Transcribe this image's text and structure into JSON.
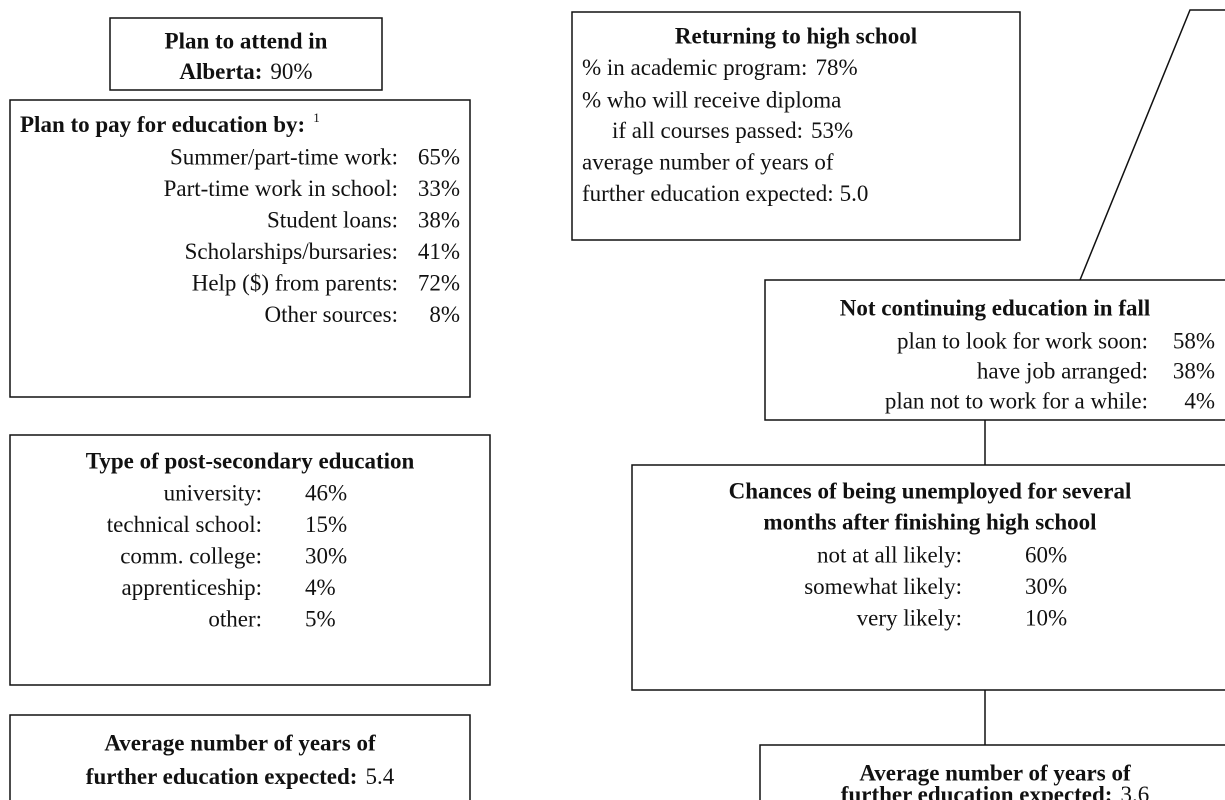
{
  "attend": {
    "title": "Plan to attend in",
    "label": "Alberta:",
    "value": "90%"
  },
  "pay": {
    "title": "Plan to pay for education by:",
    "footnote": "1",
    "items": [
      {
        "label": "Summer/part-time work:",
        "value": "65%"
      },
      {
        "label": "Part-time work in school:",
        "value": "33%"
      },
      {
        "label": "Student loans:",
        "value": "38%"
      },
      {
        "label": "Scholarships/bursaries:",
        "value": "41%"
      },
      {
        "label": "Help ($) from parents:",
        "value": "72%"
      },
      {
        "label": "Other sources:",
        "value": "8%"
      }
    ]
  },
  "type": {
    "title": "Type of post-secondary education",
    "items": [
      {
        "label": "university:",
        "value": "46%"
      },
      {
        "label": "technical school:",
        "value": "15%"
      },
      {
        "label": "comm. college:",
        "value": "30%"
      },
      {
        "label": "apprenticeship:",
        "value": "4%"
      },
      {
        "label": "other:",
        "value": "5%"
      }
    ]
  },
  "years_attending": {
    "title": "Average number of years of",
    "label": "further education expected:",
    "value": "5.4"
  },
  "returning": {
    "title": "Returning to high school",
    "items": [
      {
        "label": "% in academic program:",
        "value": "78%"
      },
      {
        "label": "% who will receive diploma",
        "label2": "if all courses passed:",
        "value": "53%"
      },
      {
        "label": "average number of years of",
        "label2": "further education expected:",
        "value": "5.0"
      }
    ]
  },
  "not_continuing": {
    "title": "Not continuing education in fall",
    "items": [
      {
        "label": "plan to look for work soon:",
        "value": "58%"
      },
      {
        "label": "have job arranged:",
        "value": "38%"
      },
      {
        "label": "plan not to work for a while:",
        "value": "4%"
      }
    ]
  },
  "unemployed": {
    "title": "Chances of being unemployed for several",
    "title2": "months after finishing high school",
    "items": [
      {
        "label": "not at all likely:",
        "value": "60%"
      },
      {
        "label": "somewhat likely:",
        "value": "30%"
      },
      {
        "label": "very likely:",
        "value": "10%"
      }
    ]
  },
  "years_not_continuing": {
    "title": "Average number of years of",
    "label": "further education expected:",
    "value": "3.6"
  }
}
